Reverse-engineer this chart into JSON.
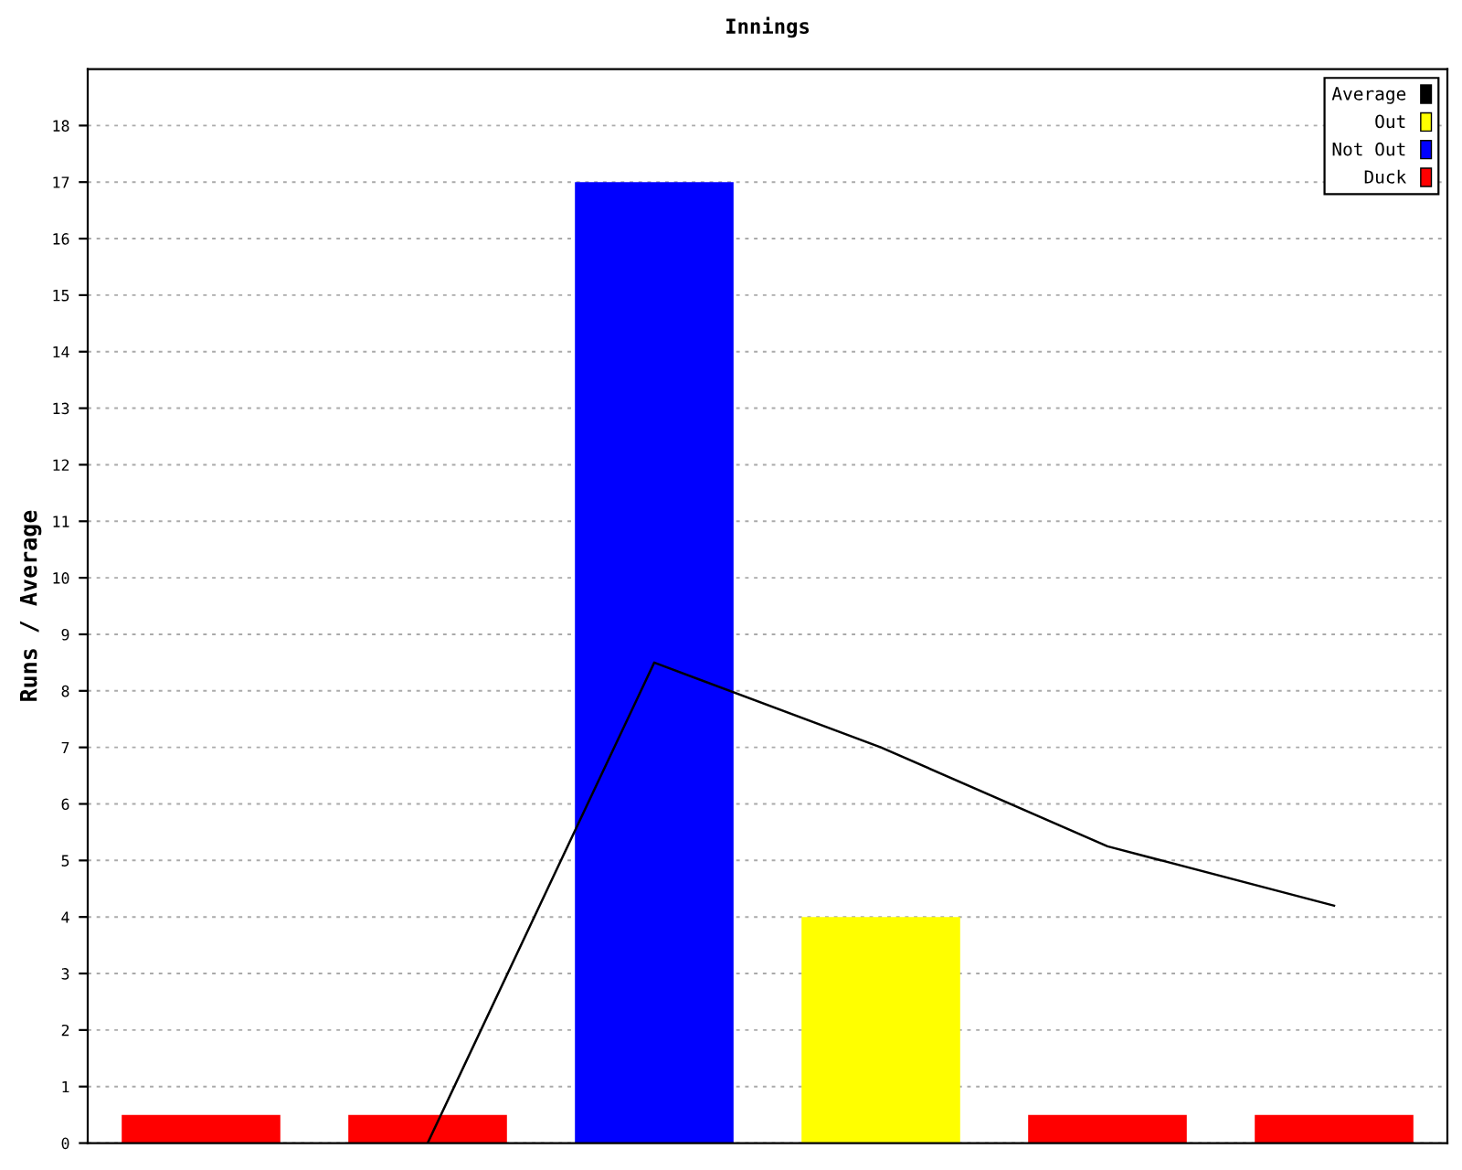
{
  "chart_data": {
    "type": "bar",
    "title": "Innings",
    "ylabel": "Runs / Average",
    "categories": [
      null,
      null,
      null,
      null,
      null,
      null
    ],
    "series": [
      {
        "name": "Average",
        "type": "line",
        "color": "#000000",
        "values": [
          null,
          0,
          8.5,
          7,
          5.25,
          4.2
        ]
      },
      {
        "name": "Out",
        "color": "#ffff00",
        "values": [
          null,
          null,
          null,
          4,
          null,
          null
        ]
      },
      {
        "name": "Not Out",
        "color": "#0000ff",
        "values": [
          null,
          null,
          17,
          null,
          null,
          null
        ]
      },
      {
        "name": "Duck",
        "color": "#ff0000",
        "values": [
          0.5,
          0.5,
          null,
          null,
          0.5,
          0.5
        ]
      }
    ],
    "ylim": [
      0,
      19
    ],
    "yticks": [
      0,
      1,
      2,
      3,
      4,
      5,
      6,
      7,
      8,
      9,
      10,
      11,
      12,
      13,
      14,
      15,
      16,
      17,
      18
    ],
    "grid": "y",
    "legend": "top right",
    "marker": "none",
    "line_style": "solid"
  }
}
